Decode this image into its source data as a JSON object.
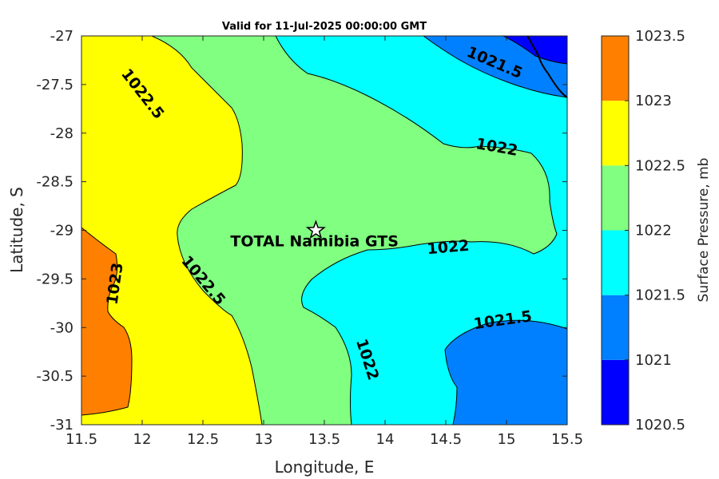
{
  "title": "Valid for 11-Jul-2025 00:00:00 GMT",
  "xlabel": "Longitude, E",
  "ylabel": "Latitude, S",
  "colorbar_label": "Surface Pressure, mb",
  "site_name": "TOTAL Namibia GTS",
  "chart_data": {
    "type": "heatmap",
    "subtype": "filled-contour-map",
    "xlim": [
      11.5,
      15.5
    ],
    "ylim": [
      -31,
      -27
    ],
    "x_ticks": [
      11.5,
      12,
      12.5,
      13,
      13.5,
      14,
      14.5,
      15,
      15.5
    ],
    "x_tick_labels": [
      "11.5",
      "12",
      "12.5",
      "13",
      "13.5",
      "14",
      "14.5",
      "15",
      "15.5"
    ],
    "y_ticks": [
      -27,
      -27.5,
      -28,
      -28.5,
      -29,
      -29.5,
      -30,
      -30.5,
      -31
    ],
    "y_tick_labels": [
      "-27",
      "-27.5",
      "-28",
      "-28.5",
      "-29",
      "-29.5",
      "-30",
      "-30.5",
      "-31"
    ],
    "colorbar": {
      "levels": [
        1020.5,
        1021,
        1021.5,
        1022,
        1022.5,
        1023,
        1023.5
      ],
      "tick_labels": [
        "1023.5",
        "1023",
        "1022.5",
        "1022",
        "1021.5",
        "1021",
        "1020.5"
      ],
      "colors": [
        "#0000ff",
        "#0080ff",
        "#00ffff",
        "#80ff80",
        "#ffff00",
        "#ff8000",
        "#ff0000"
      ]
    },
    "contour_labels": [
      {
        "text": "1022.5",
        "x": 12.0,
        "y": -27.6,
        "angle": 52
      },
      {
        "text": "1021.5",
        "x": 14.9,
        "y": -27.28,
        "angle": 23
      },
      {
        "text": "1022",
        "x": 14.92,
        "y": -28.15,
        "angle": 10
      },
      {
        "text": "1023",
        "x": 11.78,
        "y": -29.55,
        "angle": -82
      },
      {
        "text": "1022.5",
        "x": 12.5,
        "y": -29.52,
        "angle": 50
      },
      {
        "text": "1022",
        "x": 14.52,
        "y": -29.18,
        "angle": -5
      },
      {
        "text": "1021.5",
        "x": 14.97,
        "y": -29.93,
        "angle": -8
      },
      {
        "text": "1022",
        "x": 13.85,
        "y": -30.33,
        "angle": 72
      }
    ],
    "site": {
      "name": "TOTAL Namibia GTS",
      "lon": 13.43,
      "lat": -29.0
    }
  }
}
